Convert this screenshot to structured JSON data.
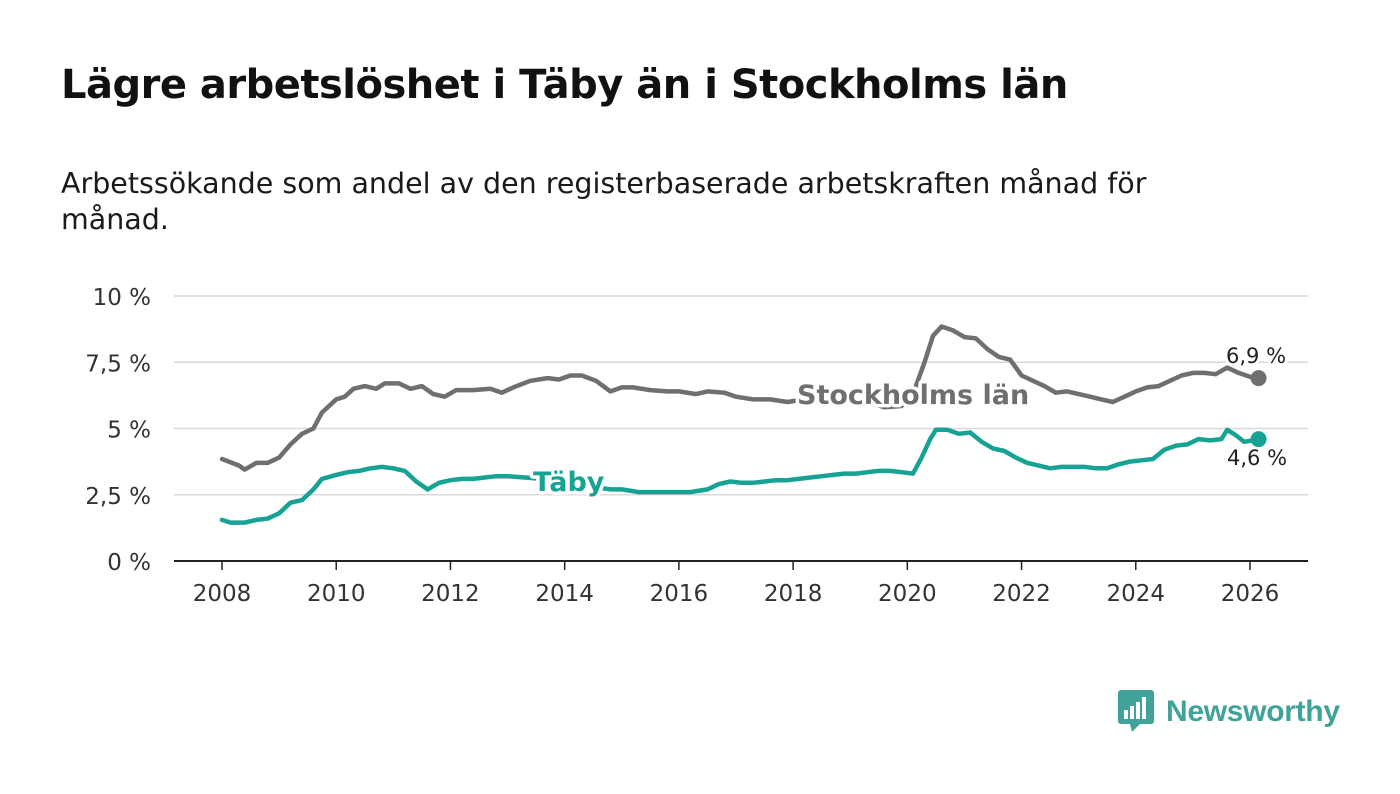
{
  "title": "Lägre arbetslöshet i Täby än i Stockholms län",
  "subtitle": "Arbetssökande som andel av den registerbaserade arbetskraften månad för månad.",
  "brand": {
    "name": "Newsworthy",
    "icon": "bar-chart-speech-bubble-icon",
    "color": "#3fa39a"
  },
  "chart_data": {
    "type": "line",
    "title": "Lägre arbetslöshet i Täby än i Stockholms län",
    "xlabel": "",
    "ylabel": "",
    "xlim": [
      2007.5,
      2027.0
    ],
    "ylim": [
      0,
      10
    ],
    "grid": true,
    "yticks": [
      0,
      2.5,
      5,
      7.5,
      10
    ],
    "ytick_labels": [
      "0 %",
      "2,5 %",
      "5 %",
      "7,5 %",
      "10 %"
    ],
    "xticks": [
      2008,
      2010,
      2012,
      2014,
      2016,
      2018,
      2020,
      2022,
      2024,
      2026
    ],
    "xtick_labels": [
      "2008",
      "2010",
      "2012",
      "2014",
      "2016",
      "2018",
      "2020",
      "2022",
      "2024",
      "2026"
    ],
    "series": [
      {
        "name": "Stockholms län",
        "color": "#6f6f6f",
        "end_label": "6,9 %",
        "end_value": 6.9,
        "points": [
          [
            2008.0,
            3.85
          ],
          [
            2008.3,
            3.6
          ],
          [
            2008.4,
            3.45
          ],
          [
            2008.6,
            3.7
          ],
          [
            2008.8,
            3.7
          ],
          [
            2009.0,
            3.9
          ],
          [
            2009.2,
            4.4
          ],
          [
            2009.4,
            4.8
          ],
          [
            2009.6,
            5.0
          ],
          [
            2009.75,
            5.6
          ],
          [
            2010.0,
            6.1
          ],
          [
            2010.15,
            6.2
          ],
          [
            2010.3,
            6.5
          ],
          [
            2010.5,
            6.6
          ],
          [
            2010.7,
            6.5
          ],
          [
            2010.85,
            6.7
          ],
          [
            2011.1,
            6.7
          ],
          [
            2011.3,
            6.5
          ],
          [
            2011.5,
            6.6
          ],
          [
            2011.7,
            6.3
          ],
          [
            2011.9,
            6.2
          ],
          [
            2012.1,
            6.45
          ],
          [
            2012.4,
            6.45
          ],
          [
            2012.7,
            6.5
          ],
          [
            2012.9,
            6.35
          ],
          [
            2013.1,
            6.55
          ],
          [
            2013.4,
            6.8
          ],
          [
            2013.7,
            6.9
          ],
          [
            2013.9,
            6.85
          ],
          [
            2014.1,
            7.0
          ],
          [
            2014.3,
            7.0
          ],
          [
            2014.55,
            6.8
          ],
          [
            2014.8,
            6.4
          ],
          [
            2015.0,
            6.55
          ],
          [
            2015.2,
            6.55
          ],
          [
            2015.5,
            6.45
          ],
          [
            2015.8,
            6.4
          ],
          [
            2016.0,
            6.4
          ],
          [
            2016.3,
            6.3
          ],
          [
            2016.5,
            6.4
          ],
          [
            2016.8,
            6.35
          ],
          [
            2017.0,
            6.2
          ],
          [
            2017.3,
            6.1
          ],
          [
            2017.6,
            6.1
          ],
          [
            2017.9,
            6.0
          ],
          [
            2018.2,
            6.1
          ],
          [
            2018.5,
            6.05
          ],
          [
            2018.8,
            6.05
          ],
          [
            2019.0,
            6.0
          ],
          [
            2019.3,
            6.0
          ],
          [
            2019.6,
            5.8
          ],
          [
            2019.9,
            5.85
          ],
          [
            2020.1,
            6.3
          ],
          [
            2020.3,
            7.5
          ],
          [
            2020.45,
            8.5
          ],
          [
            2020.6,
            8.85
          ],
          [
            2020.8,
            8.7
          ],
          [
            2021.0,
            8.45
          ],
          [
            2021.2,
            8.4
          ],
          [
            2021.4,
            8.0
          ],
          [
            2021.6,
            7.7
          ],
          [
            2021.8,
            7.6
          ],
          [
            2022.0,
            7.0
          ],
          [
            2022.2,
            6.8
          ],
          [
            2022.4,
            6.6
          ],
          [
            2022.6,
            6.35
          ],
          [
            2022.8,
            6.4
          ],
          [
            2023.0,
            6.3
          ],
          [
            2023.2,
            6.2
          ],
          [
            2023.4,
            6.1
          ],
          [
            2023.6,
            6.0
          ],
          [
            2023.8,
            6.2
          ],
          [
            2024.0,
            6.4
          ],
          [
            2024.2,
            6.55
          ],
          [
            2024.4,
            6.6
          ],
          [
            2024.6,
            6.8
          ],
          [
            2024.8,
            7.0
          ],
          [
            2025.0,
            7.1
          ],
          [
            2025.2,
            7.1
          ],
          [
            2025.4,
            7.05
          ],
          [
            2025.6,
            7.3
          ],
          [
            2025.8,
            7.1
          ],
          [
            2026.0,
            6.95
          ],
          [
            2026.15,
            6.9
          ]
        ]
      },
      {
        "name": "Täby",
        "color": "#16a394",
        "end_label": "4,6 %",
        "end_value": 4.6,
        "points": [
          [
            2008.0,
            1.55
          ],
          [
            2008.15,
            1.45
          ],
          [
            2008.4,
            1.45
          ],
          [
            2008.6,
            1.55
          ],
          [
            2008.8,
            1.6
          ],
          [
            2009.0,
            1.8
          ],
          [
            2009.2,
            2.2
          ],
          [
            2009.4,
            2.3
          ],
          [
            2009.6,
            2.7
          ],
          [
            2009.75,
            3.1
          ],
          [
            2010.0,
            3.25
          ],
          [
            2010.2,
            3.35
          ],
          [
            2010.4,
            3.4
          ],
          [
            2010.6,
            3.5
          ],
          [
            2010.8,
            3.55
          ],
          [
            2011.0,
            3.5
          ],
          [
            2011.2,
            3.4
          ],
          [
            2011.4,
            3.0
          ],
          [
            2011.6,
            2.7
          ],
          [
            2011.8,
            2.95
          ],
          [
            2012.0,
            3.05
          ],
          [
            2012.2,
            3.1
          ],
          [
            2012.4,
            3.1
          ],
          [
            2012.6,
            3.15
          ],
          [
            2012.8,
            3.2
          ],
          [
            2013.0,
            3.2
          ],
          [
            2013.3,
            3.15
          ],
          [
            2013.6,
            3.1
          ],
          [
            2013.9,
            3.0
          ],
          [
            2014.2,
            2.9
          ],
          [
            2014.5,
            2.8
          ],
          [
            2014.8,
            2.7
          ],
          [
            2015.0,
            2.7
          ],
          [
            2015.3,
            2.6
          ],
          [
            2015.6,
            2.6
          ],
          [
            2015.9,
            2.6
          ],
          [
            2016.2,
            2.6
          ],
          [
            2016.5,
            2.7
          ],
          [
            2016.7,
            2.9
          ],
          [
            2016.9,
            3.0
          ],
          [
            2017.1,
            2.95
          ],
          [
            2017.3,
            2.95
          ],
          [
            2017.5,
            3.0
          ],
          [
            2017.7,
            3.05
          ],
          [
            2017.9,
            3.05
          ],
          [
            2018.1,
            3.1
          ],
          [
            2018.3,
            3.15
          ],
          [
            2018.5,
            3.2
          ],
          [
            2018.7,
            3.25
          ],
          [
            2018.9,
            3.3
          ],
          [
            2019.1,
            3.3
          ],
          [
            2019.3,
            3.35
          ],
          [
            2019.5,
            3.4
          ],
          [
            2019.7,
            3.4
          ],
          [
            2019.9,
            3.35
          ],
          [
            2020.1,
            3.3
          ],
          [
            2020.25,
            3.9
          ],
          [
            2020.4,
            4.6
          ],
          [
            2020.5,
            4.95
          ],
          [
            2020.7,
            4.95
          ],
          [
            2020.9,
            4.8
          ],
          [
            2021.1,
            4.85
          ],
          [
            2021.3,
            4.5
          ],
          [
            2021.5,
            4.25
          ],
          [
            2021.7,
            4.15
          ],
          [
            2021.9,
            3.9
          ],
          [
            2022.1,
            3.7
          ],
          [
            2022.3,
            3.6
          ],
          [
            2022.5,
            3.5
          ],
          [
            2022.7,
            3.55
          ],
          [
            2022.9,
            3.55
          ],
          [
            2023.1,
            3.55
          ],
          [
            2023.3,
            3.5
          ],
          [
            2023.5,
            3.5
          ],
          [
            2023.7,
            3.65
          ],
          [
            2023.9,
            3.75
          ],
          [
            2024.1,
            3.8
          ],
          [
            2024.3,
            3.85
          ],
          [
            2024.5,
            4.2
          ],
          [
            2024.7,
            4.35
          ],
          [
            2024.9,
            4.4
          ],
          [
            2025.1,
            4.6
          ],
          [
            2025.3,
            4.55
          ],
          [
            2025.5,
            4.6
          ],
          [
            2025.6,
            4.95
          ],
          [
            2025.75,
            4.75
          ],
          [
            2025.9,
            4.5
          ],
          [
            2026.05,
            4.55
          ],
          [
            2026.15,
            4.6
          ]
        ]
      }
    ]
  }
}
